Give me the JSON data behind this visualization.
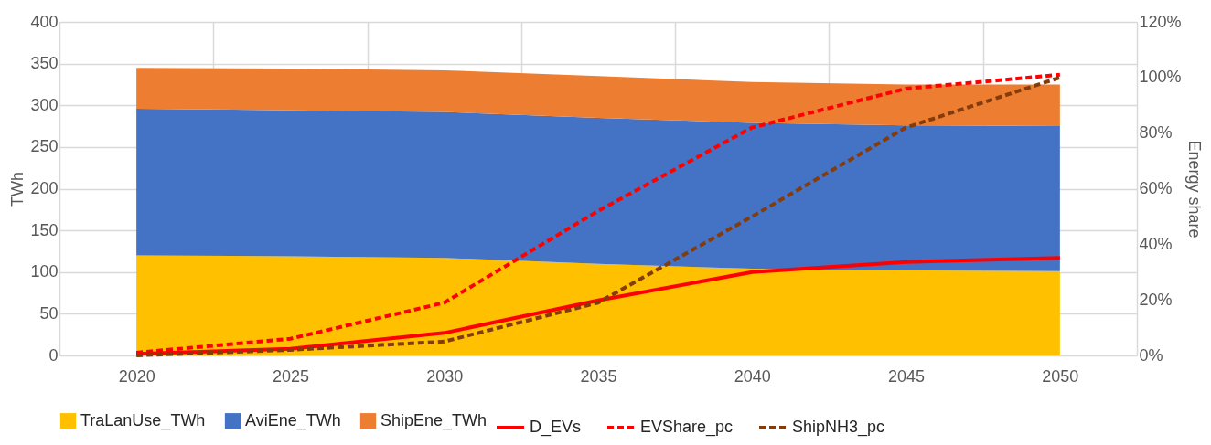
{
  "chart_data": {
    "type": "area",
    "stacked": true,
    "categories": [
      "2020",
      "2025",
      "2030",
      "2035",
      "2040",
      "2045",
      "2050"
    ],
    "ylabel": "TWh",
    "y2label": "Energy share",
    "ylim": [
      0,
      400
    ],
    "yticks": [
      0,
      50,
      100,
      150,
      200,
      250,
      300,
      350,
      400
    ],
    "y2lim": [
      0,
      120
    ],
    "y2ticks": [
      {
        "value": 0,
        "label": "0%"
      },
      {
        "value": 20,
        "label": "20%"
      },
      {
        "value": 40,
        "label": "40%"
      },
      {
        "value": 60,
        "label": "60%"
      },
      {
        "value": 80,
        "label": "80%"
      },
      {
        "value": 100,
        "label": "100%"
      },
      {
        "value": 120,
        "label": "120%"
      }
    ],
    "grid": true,
    "legend": "bottom",
    "series": [
      {
        "name": "TraLanUse_TWh",
        "color": "#ffc000",
        "values": [
          120,
          119,
          117,
          110,
          104,
          102,
          101
        ]
      },
      {
        "name": "AviEne_TWh",
        "color": "#4472c4",
        "values": [
          176,
          175,
          175,
          175,
          175,
          174,
          174
        ]
      },
      {
        "name": "ShipEne_TWh",
        "color": "#ed7d31",
        "values": [
          49,
          50,
          50,
          50,
          49,
          49,
          50
        ]
      },
      {
        "name": "D_EVs",
        "type": "line",
        "color": "#ff0000",
        "line_style": "solid",
        "values": [
          2,
          8,
          27,
          66,
          100,
          112,
          117
        ]
      },
      {
        "name": "EVShare_pc",
        "type": "line",
        "axis": "y2",
        "color": "#ff0000",
        "line_style": "dashed",
        "values": [
          1,
          6,
          19,
          52,
          82,
          96,
          101
        ]
      },
      {
        "name": "ShipNH3_pc",
        "type": "line",
        "axis": "y2",
        "color": "#843c0c",
        "line_style": "dashed",
        "values": [
          0,
          2,
          5,
          19,
          50,
          82,
          100
        ]
      }
    ]
  }
}
